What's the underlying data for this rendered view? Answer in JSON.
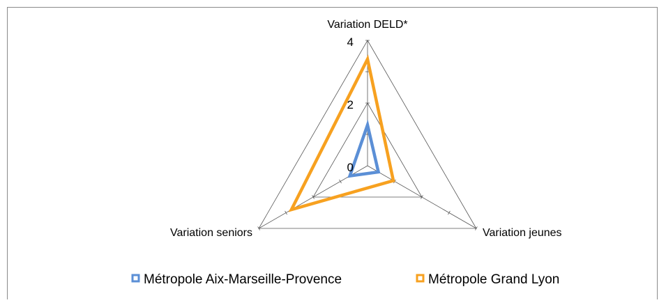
{
  "chart_data": {
    "type": "radar",
    "axes": [
      "Variation DELD*",
      "Variation jeunes",
      "Variation seniors"
    ],
    "rlim": [
      0,
      4
    ],
    "ticks": [
      "0",
      "2",
      "4"
    ],
    "grid": true,
    "legend_position": "bottom",
    "series": [
      {
        "name": "Métropole Aix-Marseille-Provence",
        "color": "#5B8FD6",
        "values": [
          1.3,
          0.4,
          0.65
        ]
      },
      {
        "name": "Métropole Grand Lyon",
        "color": "#F7A120",
        "values": [
          3.4,
          0.95,
          2.8
        ]
      }
    ]
  }
}
